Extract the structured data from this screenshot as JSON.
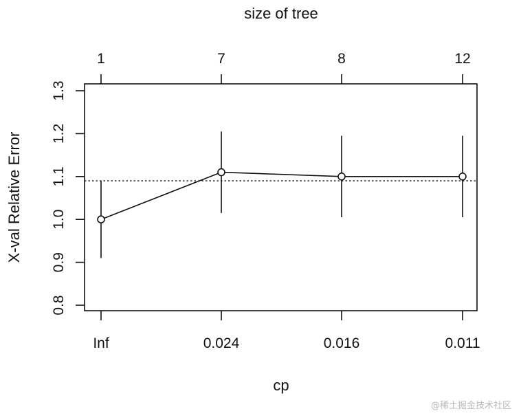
{
  "chart_data": {
    "type": "scatter",
    "title": "",
    "xlabel": "cp",
    "ylabel": "X-val Relative Error",
    "top_axis_label": "size of tree",
    "categories": [
      "Inf",
      "0.024",
      "0.016",
      "0.011"
    ],
    "top_ticks": [
      "1",
      "7",
      "8",
      "12"
    ],
    "yticks": [
      "0.8",
      "0.9",
      "1.0",
      "1.1",
      "1.2",
      "1.3"
    ],
    "ylim": [
      0.8,
      1.3
    ],
    "series": [
      {
        "values": [
          1.0,
          1.11,
          1.1,
          1.1
        ],
        "err_low": [
          0.91,
          1.015,
          1.005,
          1.005
        ],
        "err_high": [
          1.09,
          1.205,
          1.195,
          1.195
        ]
      }
    ],
    "reference_line": 1.09,
    "grid": false,
    "line_color": "#111111"
  },
  "watermark": "@稀土掘金技术社区"
}
